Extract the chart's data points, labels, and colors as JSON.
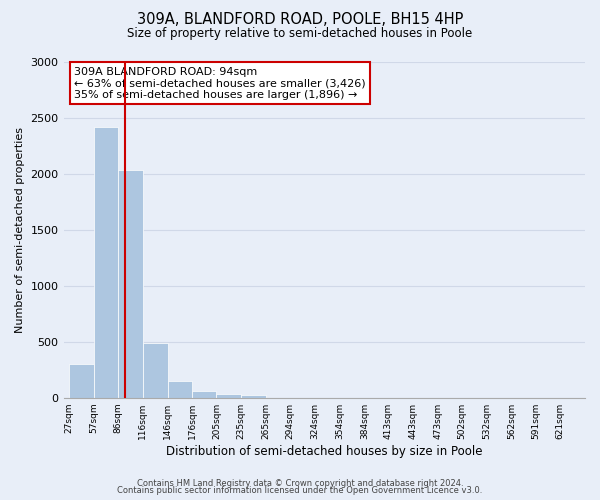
{
  "title": "309A, BLANDFORD ROAD, POOLE, BH15 4HP",
  "subtitle": "Size of property relative to semi-detached houses in Poole",
  "xlabel": "Distribution of semi-detached houses by size in Poole",
  "ylabel": "Number of semi-detached properties",
  "footnote1": "Contains HM Land Registry data © Crown copyright and database right 2024.",
  "footnote2": "Contains public sector information licensed under the Open Government Licence v3.0.",
  "bar_left_edges": [
    27,
    57,
    86,
    116,
    146,
    176,
    205,
    235,
    265,
    294,
    324,
    354,
    384,
    413,
    443,
    473,
    502,
    532,
    562,
    591
  ],
  "bar_widths": [
    30,
    29,
    30,
    30,
    30,
    29,
    30,
    30,
    29,
    30,
    30,
    30,
    29,
    30,
    30,
    29,
    30,
    30,
    29,
    30
  ],
  "bar_heights": [
    305,
    2420,
    2030,
    490,
    150,
    60,
    35,
    25,
    0,
    0,
    0,
    0,
    0,
    0,
    0,
    0,
    0,
    0,
    0,
    0
  ],
  "bar_color": "#adc6e0",
  "bar_edgecolor": "#adc6e0",
  "property_line_x": 94,
  "property_line_color": "#cc0000",
  "ylim": [
    0,
    3000
  ],
  "yticks": [
    0,
    500,
    1000,
    1500,
    2000,
    2500,
    3000
  ],
  "xtick_labels": [
    "27sqm",
    "57sqm",
    "86sqm",
    "116sqm",
    "146sqm",
    "176sqm",
    "205sqm",
    "235sqm",
    "265sqm",
    "294sqm",
    "324sqm",
    "354sqm",
    "384sqm",
    "413sqm",
    "443sqm",
    "473sqm",
    "502sqm",
    "532sqm",
    "562sqm",
    "591sqm",
    "621sqm"
  ],
  "xtick_positions": [
    27,
    57,
    86,
    116,
    146,
    176,
    205,
    235,
    265,
    294,
    324,
    354,
    384,
    413,
    443,
    473,
    502,
    532,
    562,
    591,
    621
  ],
  "annotation_title": "309A BLANDFORD ROAD: 94sqm",
  "annotation_line1": "← 63% of semi-detached houses are smaller (3,426)",
  "annotation_line2": "35% of semi-detached houses are larger (1,896) →",
  "annotation_box_color": "#ffffff",
  "annotation_box_edgecolor": "#cc0000",
  "grid_color": "#d0d8e8",
  "background_color": "#e8eef8",
  "xlim_min": 20,
  "xlim_max": 651
}
